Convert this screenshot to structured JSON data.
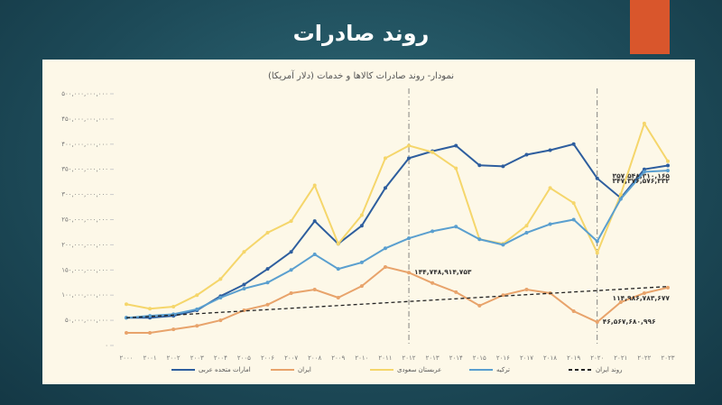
{
  "slide_title": "روند صادرات",
  "chart_data": {
    "type": "line",
    "title": "نمودار- روند صادرات کالاها و خدمات (دلار آمریکا)",
    "categories": [
      "۲۰۰۰",
      "۲۰۰۱",
      "۲۰۰۲",
      "۲۰۰۳",
      "۲۰۰۴",
      "۲۰۰۵",
      "۲۰۰۶",
      "۲۰۰۷",
      "۲۰۰۸",
      "۲۰۰۹",
      "۲۰۱۰",
      "۲۰۱۱",
      "۲۰۱۲",
      "۲۰۱۳",
      "۲۰۱۴",
      "۲۰۱۵",
      "۲۰۱۶",
      "۲۰۱۷",
      "۲۰۱۸",
      "۲۰۱۹",
      "۲۰۲۰",
      "۲۰۲۱",
      "۲۰۲۲",
      "۲۰۲۳"
    ],
    "ylim": [
      0,
      500000000000.0
    ],
    "yticks": [
      {
        "value": 0,
        "label": "۰"
      },
      {
        "value": 50000000000.0,
        "label": "۵۰,۰۰۰,۰۰۰,۰۰۰"
      },
      {
        "value": 100000000000.0,
        "label": "۱۰۰,۰۰۰,۰۰۰,۰۰۰"
      },
      {
        "value": 150000000000.0,
        "label": "۱۵۰,۰۰۰,۰۰۰,۰۰۰"
      },
      {
        "value": 200000000000.0,
        "label": "۲۰۰,۰۰۰,۰۰۰,۰۰۰"
      },
      {
        "value": 250000000000.0,
        "label": "۲۵۰,۰۰۰,۰۰۰,۰۰۰"
      },
      {
        "value": 300000000000.0,
        "label": "۳۰۰,۰۰۰,۰۰۰,۰۰۰"
      },
      {
        "value": 350000000000.0,
        "label": "۳۵۰,۰۰۰,۰۰۰,۰۰۰"
      },
      {
        "value": 400000000000.0,
        "label": "۴۰۰,۰۰۰,۰۰۰,۰۰۰"
      },
      {
        "value": 450000000000.0,
        "label": "۴۵۰,۰۰۰,۰۰۰,۰۰۰"
      },
      {
        "value": 500000000000.0,
        "label": "۵۰۰,۰۰۰,۰۰۰,۰۰۰"
      }
    ],
    "reference_lines": [
      "۲۰۱۲",
      "۲۰۲۰"
    ],
    "series": [
      {
        "name": "امارات متحده عربی",
        "color": "#2e5e9e",
        "values": [
          55000000000.0,
          55000000000.0,
          59000000000.0,
          70000000000.0,
          98000000000.0,
          121000000000.0,
          152000000000.0,
          186000000000.0,
          247000000000.0,
          202000000000.0,
          238000000000.0,
          313000000000.0,
          372000000000.0,
          386000000000.0,
          397000000000.0,
          358000000000.0,
          356000000000.0,
          379000000000.0,
          388000000000.0,
          400000000000.0,
          332000000000.0,
          293000000000.0,
          350000000000.0,
          357548310165
        ],
        "value_labels": [
          null,
          null,
          null,
          null,
          null,
          null,
          null,
          null,
          null,
          null,
          null,
          null,
          null,
          null,
          null,
          null,
          null,
          null,
          null,
          null,
          null,
          null,
          null,
          "۳۵۷,۵۴۸,۳۱۰,۱۶۵"
        ]
      },
      {
        "name": "ایران",
        "color": "#e8a36b",
        "values": [
          25000000000.0,
          25000000000.0,
          32000000000.0,
          39000000000.0,
          50000000000.0,
          70000000000.0,
          81000000000.0,
          104000000000.0,
          111000000000.0,
          95000000000.0,
          118000000000.0,
          156000000000.0,
          144748914753,
          124000000000.0,
          106000000000.0,
          79000000000.0,
          100000000000.0,
          111000000000.0,
          104000000000.0,
          68000000000.0,
          46567680996,
          86000000000.0,
          104000000000.0,
          114986783677
        ],
        "value_labels": [
          null,
          null,
          null,
          null,
          null,
          null,
          null,
          null,
          null,
          null,
          null,
          null,
          "۱۴۴,۷۴۸,۹۱۴,۷۵۳",
          null,
          null,
          null,
          null,
          null,
          null,
          null,
          "۴۶,۵۶۷,۶۸۰,۹۹۶",
          null,
          null,
          "۱۱۴,۹۸۶,۷۸۳,۶۷۷"
        ]
      },
      {
        "name": "عربستان سعودی",
        "color": "#f5d66b",
        "values": [
          82000000000.0,
          73000000000.0,
          77000000000.0,
          100000000000.0,
          132000000000.0,
          186000000000.0,
          224000000000.0,
          247000000000.0,
          318000000000.0,
          202000000000.0,
          259000000000.0,
          372000000000.0,
          397000000000.0,
          384000000000.0,
          352000000000.0,
          211000000000.0,
          202000000000.0,
          238000000000.0,
          313000000000.0,
          283000000000.0,
          184000000000.0,
          300000000000.0,
          441000000000.0,
          366000000000.0
        ]
      },
      {
        "name": "ترکیه",
        "color": "#5a9fcf",
        "values": [
          55000000000.0,
          59000000000.0,
          62000000000.0,
          72000000000.0,
          95000000000.0,
          113000000000.0,
          125000000000.0,
          150000000000.0,
          181000000000.0,
          152000000000.0,
          165000000000.0,
          193000000000.0,
          213000000000.0,
          227000000000.0,
          236000000000.0,
          211000000000.0,
          200000000000.0,
          224000000000.0,
          241000000000.0,
          250000000000.0,
          207000000000.0,
          291000000000.0,
          345000000000.0,
          347376576332
        ],
        "value_labels": [
          null,
          null,
          null,
          null,
          null,
          null,
          null,
          null,
          null,
          null,
          null,
          null,
          null,
          null,
          null,
          null,
          null,
          null,
          null,
          null,
          null,
          null,
          null,
          "۳۴۷,۳۷۶,۵۷۶,۳۳۲"
        ]
      },
      {
        "name": "روند ایران",
        "color": "#222222",
        "dash": true,
        "values": [
          55000000000.0,
          57700000000.0,
          60400000000.0,
          63100000000.0,
          65800000000.0,
          68500000000.0,
          71200000000.0,
          73900000000.0,
          76600000000.0,
          79300000000.0,
          82000000000.0,
          84700000000.0,
          87400000000.0,
          90100000000.0,
          92800000000.0,
          95500000000.0,
          98200000000.0,
          100900000000.0,
          103600000000.0,
          106300000000.0,
          109000000000.0,
          111700000000.0,
          114400000000.0,
          117100000000.0
        ]
      }
    ],
    "grid": false
  }
}
